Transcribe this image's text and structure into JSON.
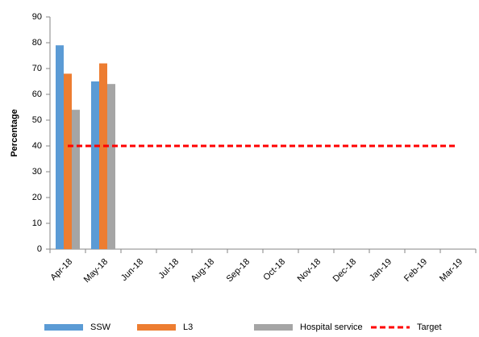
{
  "chart_data": {
    "type": "bar",
    "y_label": "Percentage",
    "categories": [
      "Apr-18",
      "May-18",
      "Jun-18",
      "Jul-18",
      "Aug-18",
      "Sep-18",
      "Oct-18",
      "Nov-18",
      "Dec-18",
      "Jan-19",
      "Feb-19",
      "Mar-19"
    ],
    "series": [
      {
        "name": "SSW",
        "color": "#5b9bd5",
        "values": [
          79,
          65,
          null,
          null,
          null,
          null,
          null,
          null,
          null,
          null,
          null,
          null
        ]
      },
      {
        "name": "L3",
        "color": "#ed7d31",
        "values": [
          68,
          72,
          null,
          null,
          null,
          null,
          null,
          null,
          null,
          null,
          null,
          null
        ]
      },
      {
        "name": "Hospital service",
        "color": "#a5a5a5",
        "values": [
          54,
          64,
          null,
          null,
          null,
          null,
          null,
          null,
          null,
          null,
          null,
          null
        ]
      },
      {
        "name": "Target",
        "type": "line",
        "color": "#ff0000",
        "values": [
          40,
          40,
          40,
          40,
          40,
          40,
          40,
          40,
          40,
          40,
          40,
          40
        ]
      }
    ],
    "ylim": [
      0,
      90
    ],
    "yticks": [
      0,
      10,
      20,
      30,
      40,
      50,
      60,
      70,
      80,
      90
    ],
    "grid": false,
    "legend": "bottom"
  }
}
